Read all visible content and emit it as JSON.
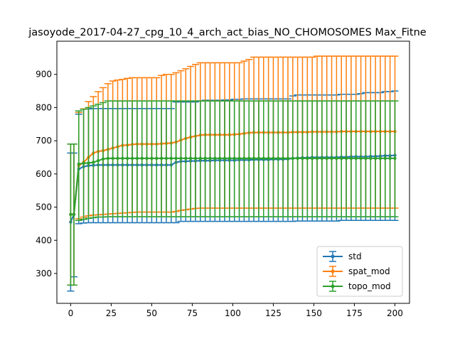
{
  "chart_data": {
    "type": "line",
    "title": "jasoyode_2017-04-27_cpg_10_4_arch_act_bias_NO_CHOMOSOMES Max_Fitne",
    "xlabel": "",
    "ylabel": "",
    "xlim": [
      -8.5,
      209
    ],
    "ylim": [
      210,
      1000
    ],
    "xticks": [
      0,
      25,
      50,
      75,
      100,
      125,
      150,
      175,
      200
    ],
    "yticks": [
      300,
      400,
      500,
      600,
      700,
      800,
      900
    ],
    "grid": false,
    "legend_position": "lower right",
    "error_bars": true,
    "x": [
      0,
      2,
      5,
      8,
      11,
      14,
      17,
      20,
      23,
      26,
      29,
      32,
      35,
      38,
      41,
      44,
      47,
      50,
      53,
      56,
      59,
      62,
      65,
      68,
      71,
      74,
      77,
      80,
      83,
      86,
      89,
      92,
      95,
      98,
      101,
      104,
      107,
      110,
      113,
      116,
      119,
      122,
      125,
      128,
      131,
      134,
      137,
      140,
      143,
      146,
      149,
      152,
      155,
      158,
      161,
      164,
      167,
      170,
      173,
      176,
      179,
      182,
      185,
      188,
      191,
      194,
      197,
      200
    ],
    "series": [
      {
        "name": "std",
        "color": "#1f77b4",
        "values": [
          455,
          478,
          615,
          622,
          625,
          626,
          627,
          627,
          627,
          627,
          627,
          627,
          627,
          627,
          627,
          627,
          627,
          627,
          627,
          627,
          627,
          627,
          635,
          638,
          638,
          639,
          639,
          640,
          640,
          640,
          641,
          641,
          641,
          641,
          641,
          642,
          642,
          642,
          643,
          643,
          643,
          643,
          644,
          644,
          644,
          645,
          647,
          648,
          649,
          649,
          650,
          650,
          650,
          650,
          650,
          650,
          651,
          651,
          652,
          652,
          652,
          652,
          653,
          653,
          654,
          655,
          655,
          656
        ],
        "upper": [
          663,
          663,
          780,
          795,
          796,
          797,
          797,
          797,
          797,
          797,
          797,
          797,
          797,
          797,
          797,
          797,
          797,
          797,
          797,
          797,
          797,
          797,
          817,
          817,
          817,
          817,
          817,
          820,
          822,
          822,
          822,
          822,
          823,
          823,
          825,
          825,
          826,
          826,
          826,
          826,
          826,
          826,
          826,
          826,
          826,
          826,
          835,
          838,
          838,
          838,
          838,
          838,
          838,
          838,
          838,
          838,
          840,
          840,
          840,
          840,
          842,
          845,
          845,
          845,
          845,
          848,
          848,
          850
        ],
        "lower": [
          247,
          290,
          450,
          452,
          453,
          453,
          453,
          453,
          453,
          453,
          453,
          453,
          453,
          453,
          453,
          453,
          453,
          453,
          453,
          453,
          453,
          453,
          453,
          457,
          457,
          457,
          457,
          457,
          457,
          457,
          457,
          457,
          457,
          457,
          457,
          457,
          457,
          457,
          457,
          457,
          457,
          457,
          457,
          457,
          457,
          457,
          457,
          458,
          458,
          458,
          458,
          458,
          458,
          458,
          458,
          458,
          460,
          460,
          460,
          460,
          460,
          460,
          460,
          460,
          460,
          460,
          460,
          460
        ]
      },
      {
        "name": "spat_mod",
        "color": "#ff7f0e",
        "values": [
          478,
          478,
          625,
          635,
          650,
          663,
          668,
          670,
          674,
          678,
          682,
          686,
          687,
          689,
          690,
          690,
          690,
          690,
          690,
          691,
          692,
          693,
          696,
          702,
          707,
          711,
          714,
          717,
          718,
          718,
          718,
          718,
          718,
          718,
          719,
          720,
          722,
          724,
          725,
          725,
          725,
          725,
          725,
          725,
          725,
          725,
          726,
          726,
          726,
          726,
          727,
          727,
          727,
          727,
          727,
          727,
          728,
          728,
          728,
          728,
          728,
          728,
          728,
          728,
          728,
          728,
          728,
          728
        ],
        "upper": [
          690,
          690,
          785,
          796,
          818,
          833,
          848,
          860,
          872,
          880,
          883,
          885,
          888,
          890,
          890,
          890,
          890,
          890,
          890,
          897,
          900,
          900,
          905,
          911,
          917,
          924,
          930,
          935,
          935,
          935,
          935,
          935,
          935,
          935,
          935,
          935,
          940,
          945,
          952,
          952,
          952,
          952,
          952,
          952,
          952,
          952,
          952,
          952,
          952,
          952,
          952,
          955,
          955,
          955,
          955,
          955,
          955,
          955,
          955,
          955,
          955,
          955,
          955,
          955,
          955,
          955,
          955,
          955
        ],
        "lower": [
          265,
          265,
          465,
          470,
          474,
          476,
          477,
          478,
          479,
          480,
          481,
          482,
          483,
          484,
          485,
          485,
          485,
          485,
          485,
          485,
          485,
          485,
          487,
          490,
          492,
          494,
          496,
          497,
          497,
          497,
          497,
          497,
          497,
          497,
          497,
          497,
          497,
          497,
          497,
          497,
          497,
          497,
          497,
          497,
          497,
          497,
          497,
          497,
          497,
          497,
          497,
          497,
          497,
          497,
          497,
          497,
          497,
          497,
          497,
          497,
          497,
          497,
          497,
          497,
          497,
          497,
          497,
          497
        ]
      },
      {
        "name": "topo_mod",
        "color": "#2ca02c",
        "values": [
          478,
          478,
          630,
          632,
          633,
          635,
          640,
          645,
          647,
          647,
          647,
          647,
          647,
          647,
          647,
          647,
          647,
          647,
          647,
          647,
          647,
          647,
          647,
          647,
          647,
          647,
          647,
          647,
          647,
          647,
          647,
          647,
          647,
          647,
          647,
          647,
          647,
          647,
          647,
          647,
          647,
          647,
          647,
          647,
          647,
          647,
          647,
          647,
          647,
          647,
          647,
          647,
          647,
          647,
          647,
          647,
          647,
          647,
          647,
          647,
          647,
          647,
          647,
          647,
          647,
          647,
          647,
          647
        ],
        "upper": [
          690,
          690,
          790,
          795,
          800,
          805,
          810,
          815,
          820,
          820,
          820,
          820,
          820,
          820,
          820,
          820,
          820,
          820,
          820,
          820,
          820,
          820,
          820,
          820,
          820,
          820,
          820,
          820,
          820,
          820,
          820,
          820,
          820,
          820,
          820,
          820,
          820,
          820,
          820,
          820,
          820,
          820,
          820,
          820,
          820,
          820,
          820,
          820,
          820,
          820,
          820,
          820,
          820,
          820,
          820,
          820,
          820,
          820,
          820,
          820,
          820,
          820,
          820,
          820,
          820,
          820,
          820,
          820
        ],
        "lower": [
          265,
          265,
          460,
          463,
          466,
          468,
          470,
          470,
          471,
          471,
          471,
          471,
          471,
          471,
          471,
          471,
          471,
          471,
          471,
          471,
          471,
          471,
          471,
          471,
          471,
          471,
          471,
          471,
          471,
          471,
          471,
          471,
          471,
          471,
          471,
          471,
          471,
          471,
          471,
          471,
          471,
          471,
          471,
          471,
          471,
          471,
          471,
          471,
          471,
          471,
          471,
          471,
          471,
          471,
          471,
          471,
          471,
          471,
          471,
          471,
          471,
          471,
          471,
          471,
          471,
          471,
          471,
          471
        ]
      }
    ]
  }
}
